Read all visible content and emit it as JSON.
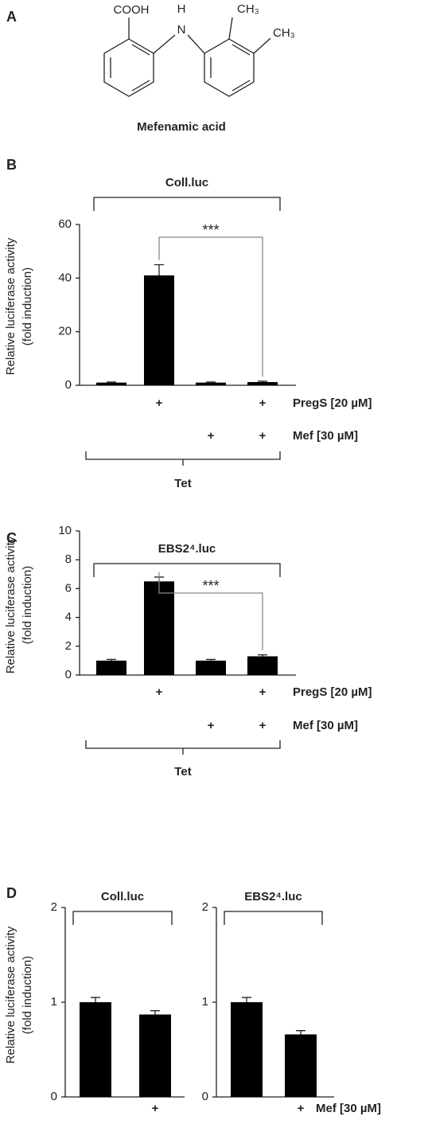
{
  "panel_a": {
    "label": "A",
    "atoms": [
      "COOH",
      "H",
      "N",
      "CH₃",
      "CH₃"
    ],
    "caption": "Mefenamic acid"
  },
  "chart_data": [
    {
      "type": "bar",
      "panel": "B",
      "title": "Coll.luc",
      "ylabel": [
        "Relative luciferase activity",
        "(fold induction)"
      ],
      "ylim": [
        0,
        60
      ],
      "yticks": [
        0,
        20,
        40,
        60
      ],
      "color": "#000000",
      "values": [
        1,
        41,
        1,
        1.2
      ],
      "errors": [
        0.2,
        4,
        0.2,
        0.3
      ],
      "rows": [
        {
          "name": "PregS [20 µM]",
          "marks": [
            null,
            "+",
            null,
            "+"
          ]
        },
        {
          "name": "Mef [30 µM]",
          "marks": [
            null,
            null,
            "+",
            "+"
          ]
        }
      ],
      "group_label": "Tet",
      "significance": {
        "label": "***",
        "from": 1,
        "to": 3
      }
    },
    {
      "type": "bar",
      "panel": "C",
      "title": "EBS2⁴.luc",
      "ylabel": [
        "Relative luciferase activity",
        "(fold induction)"
      ],
      "ylim": [
        0,
        10
      ],
      "yticks": [
        0,
        2,
        4,
        6,
        8,
        10
      ],
      "color": "#000000",
      "values": [
        1,
        6.5,
        1,
        1.3
      ],
      "errors": [
        0.08,
        0.3,
        0.08,
        0.1
      ],
      "rows": [
        {
          "name": "PregS [20 µM]",
          "marks": [
            null,
            "+",
            null,
            "+"
          ]
        },
        {
          "name": "Mef [30 µM]",
          "marks": [
            null,
            null,
            "+",
            "+"
          ]
        }
      ],
      "group_label": "Tet",
      "significance": {
        "label": "***",
        "from": 1,
        "to": 3
      }
    },
    {
      "type": "bar",
      "panel": "D",
      "title": "Coll.luc",
      "ylabel": [
        "Relative luciferase activity",
        "(fold induction)"
      ],
      "ylim": [
        0,
        2
      ],
      "yticks": [
        0,
        1,
        2
      ],
      "color": "#000000",
      "values": [
        1,
        0.87
      ],
      "errors": [
        0.05,
        0.04
      ],
      "rows": [
        {
          "marks": [
            null,
            "+"
          ]
        }
      ]
    },
    {
      "type": "bar",
      "title": "EBS2⁴.luc",
      "ylim": [
        0,
        2
      ],
      "yticks": [
        0,
        1,
        2
      ],
      "color": "#000000",
      "values": [
        1,
        0.66
      ],
      "errors": [
        0.05,
        0.04
      ],
      "rows": [
        {
          "name": "Mef [30 µM]",
          "marks": [
            null,
            "+"
          ]
        }
      ]
    }
  ]
}
